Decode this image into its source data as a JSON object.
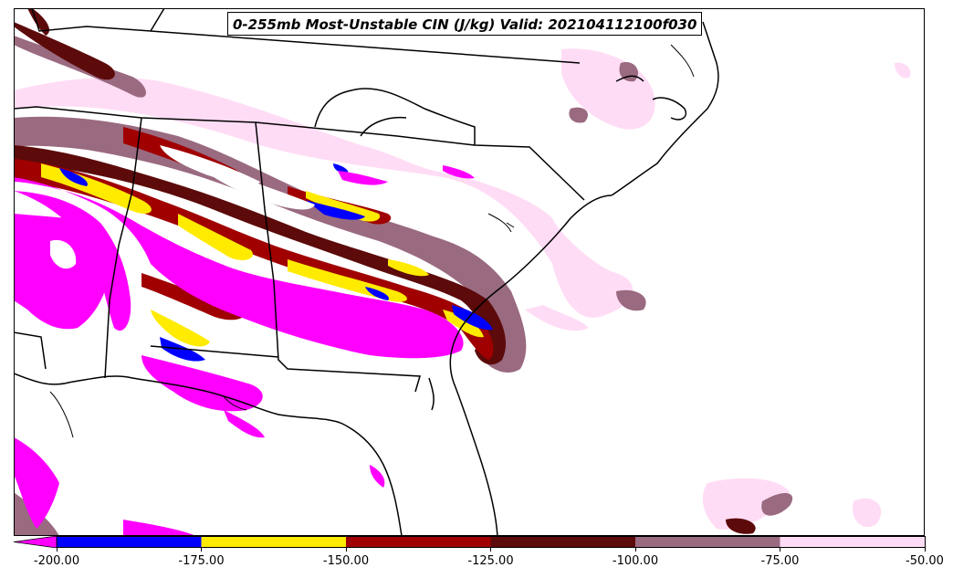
{
  "map": {
    "title": "0-255mb Most-Unstable CIN (J/kg) Valid: 202104112100f030",
    "colors": {
      "lt_neg200": "#ff00ff",
      "n200_n175": "#0000ff",
      "n175_n150": "#ffeb00",
      "n150_n125": "#a00000",
      "n125_n100": "#5c0a0a",
      "n100_n75": "#9a6a80",
      "n75_n50": "#ffdcf5"
    }
  },
  "colorbar": {
    "extend": "min",
    "bins": [
      {
        "from": -200.0,
        "to": -175.0,
        "color": "#0000ff"
      },
      {
        "from": -175.0,
        "to": -150.0,
        "color": "#ffeb00"
      },
      {
        "from": -150.0,
        "to": -125.0,
        "color": "#a00000"
      },
      {
        "from": -125.0,
        "to": -100.0,
        "color": "#5c0a0a"
      },
      {
        "from": -100.0,
        "to": -75.0,
        "color": "#9a6a80"
      },
      {
        "from": -75.0,
        "to": -50.0,
        "color": "#ffdcf5"
      }
    ],
    "below_color": "#ff00ff",
    "tick_labels": [
      "-200.00",
      "-175.00",
      "-150.00",
      "-125.00",
      "-100.00",
      "-75.00",
      "-50.00"
    ]
  }
}
